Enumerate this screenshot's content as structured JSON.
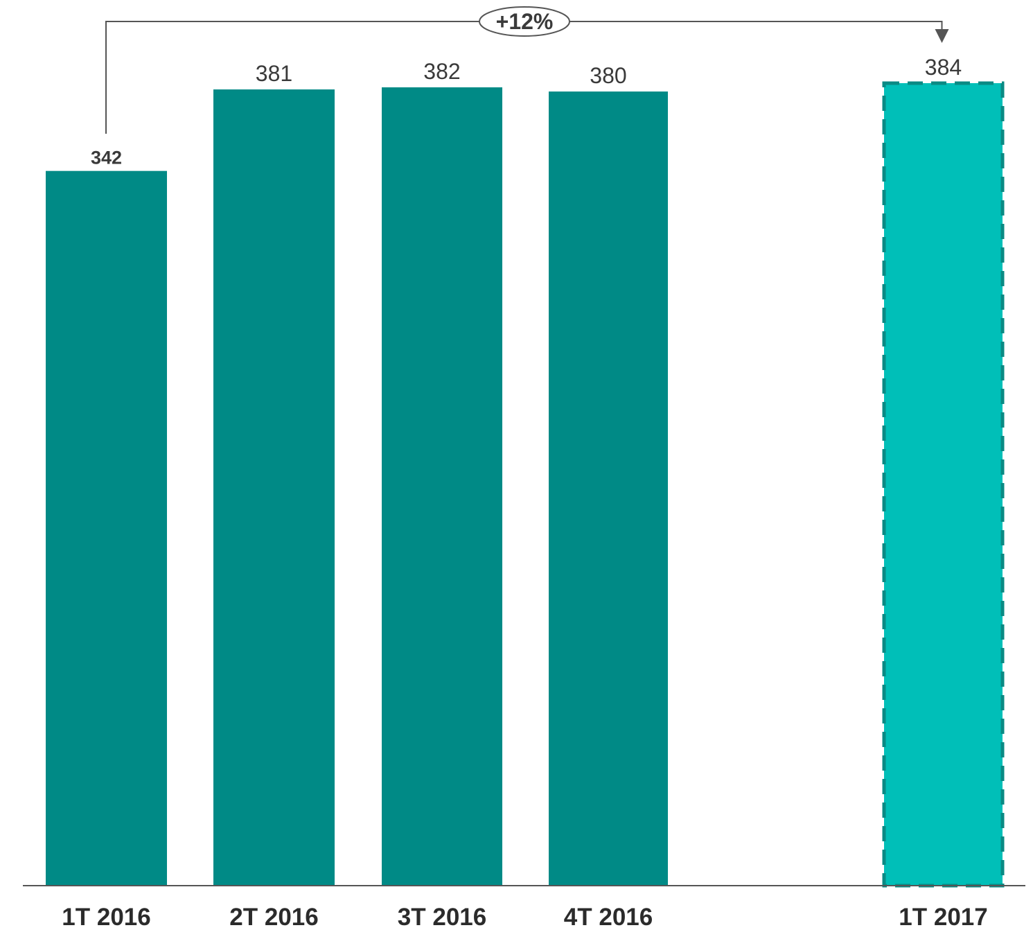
{
  "chart_data": {
    "type": "bar",
    "title": "",
    "xlabel": "",
    "ylabel": "",
    "categories": [
      "1T 2016",
      "2T 2016",
      "3T 2016",
      "4T 2016",
      "1T 2017"
    ],
    "values": [
      342,
      381,
      382,
      380,
      384
    ],
    "value_labels": [
      "342",
      "381",
      "382",
      "380",
      "384"
    ],
    "highlighted_index": 0,
    "dashed_index": 4,
    "ylim": [
      0,
      384
    ],
    "grid": false,
    "legend": "none",
    "colors": {
      "bar": "#008a86",
      "bar_projected": "#00bfb8",
      "bar_projected_border": "#0a8a84",
      "axis": "#555555",
      "connector": "#555555"
    },
    "annotation": {
      "text": "+12%",
      "from_category": "1T 2016",
      "to_category": "1T 2017"
    }
  }
}
